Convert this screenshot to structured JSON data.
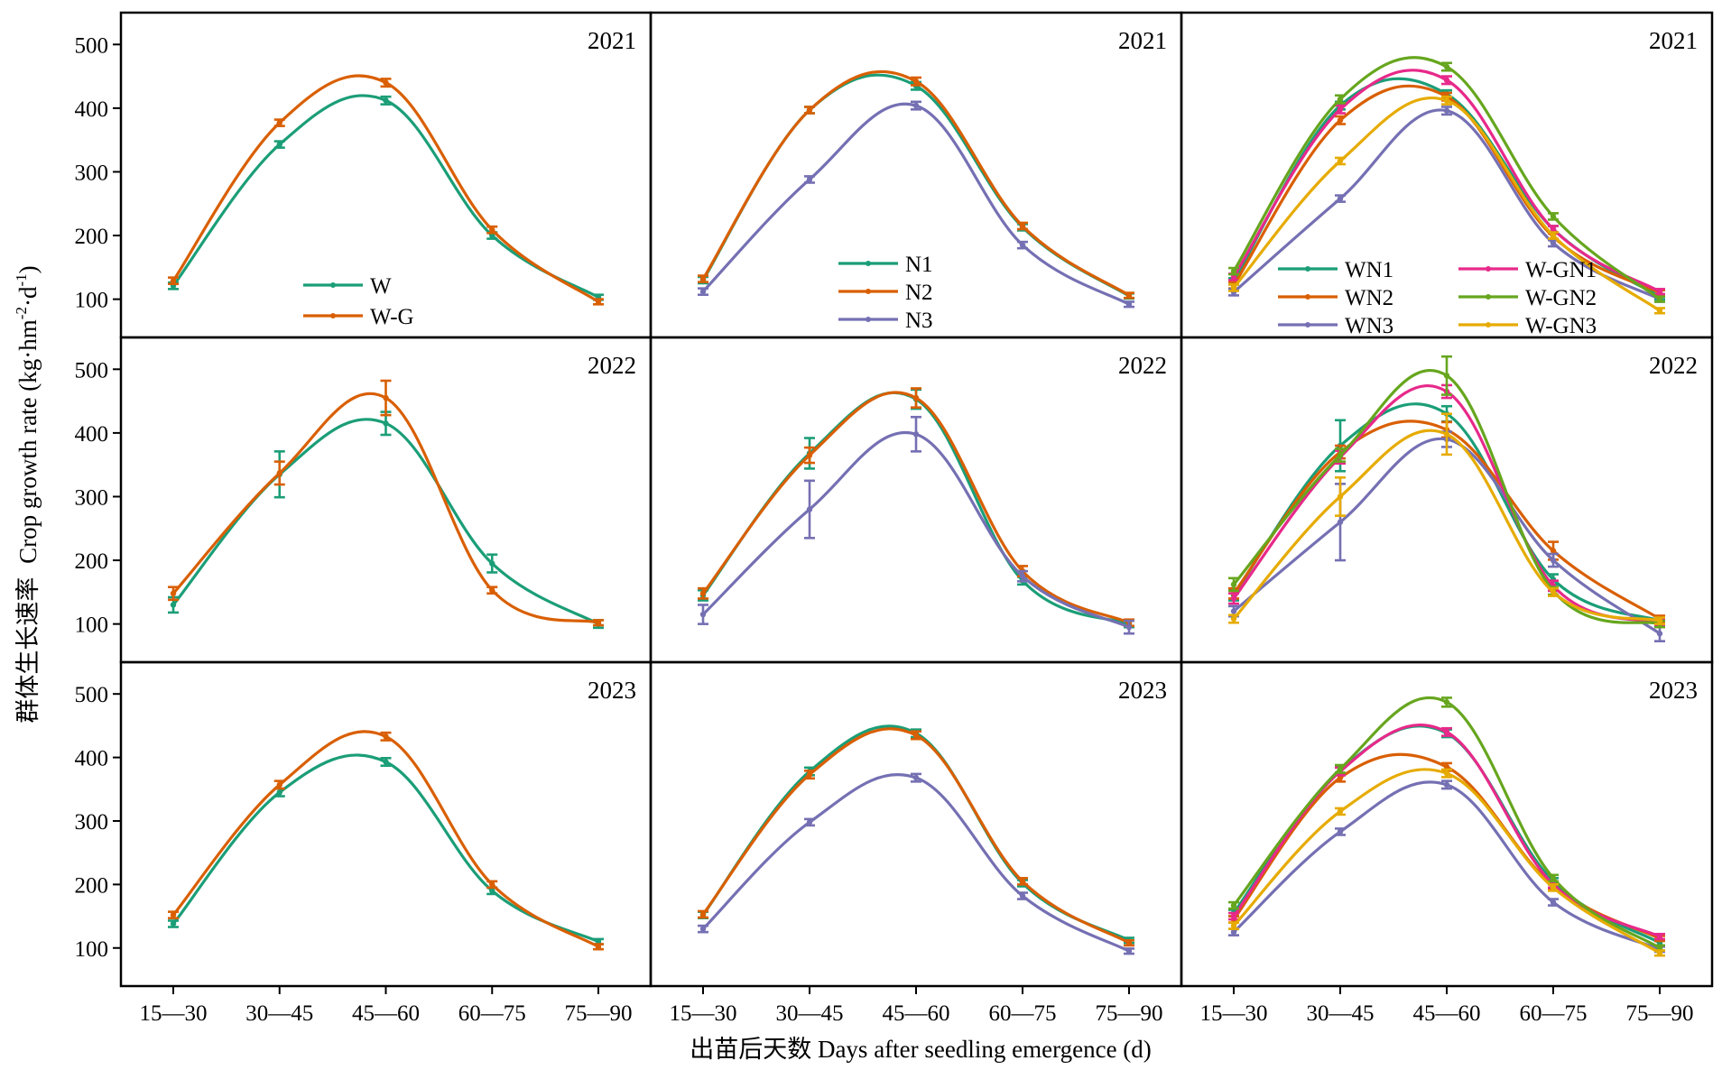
{
  "x_axis": {
    "title": "出苗后天数 Days after seedling emergence (d)",
    "tick_labels": [
      "15—30",
      "30—45",
      "45—60",
      "60—75",
      "75—90"
    ]
  },
  "y_axis": {
    "title_cn": "群体生长速率",
    "title_en": "Crop growth rate (kg·hm",
    "title_sup1": "-2",
    "title_mid": "·d",
    "title_sup2": "-1",
    "title_end": ")",
    "tick_values": [
      100,
      200,
      300,
      400,
      500
    ],
    "ylim": [
      40,
      550
    ]
  },
  "colors": {
    "W": "#1b9e77",
    "W-G": "#d95f02",
    "N1": "#1b9e77",
    "N2": "#d95f02",
    "N3": "#7570b3",
    "WN1": "#1b9e77",
    "WN2": "#d95f02",
    "WN3": "#7570b3",
    "W-GN1": "#e7298a",
    "W-GN2": "#66a61e",
    "W-GN3": "#e6ab02"
  },
  "chart_data": [
    {
      "type": "line",
      "row": 0,
      "col": 0,
      "year": "2021",
      "categories": [
        "15—30",
        "30—45",
        "45—60",
        "60—75",
        "75—90"
      ],
      "series": [
        {
          "name": "W",
          "values": [
            121,
            343,
            412,
            200,
            103
          ],
          "errors": [
            5,
            5,
            6,
            5,
            4
          ]
        },
        {
          "name": "W-G",
          "values": [
            129,
            377,
            440,
            209,
            96
          ],
          "errors": [
            5,
            5,
            6,
            5,
            4
          ]
        }
      ]
    },
    {
      "type": "line",
      "row": 0,
      "col": 1,
      "year": "2021",
      "categories": [
        "15—30",
        "30—45",
        "45—60",
        "60—75",
        "75—90"
      ],
      "series": [
        {
          "name": "N1",
          "values": [
            130,
            397,
            435,
            213,
            105
          ],
          "errors": [
            5,
            5,
            6,
            5,
            4
          ]
        },
        {
          "name": "N2",
          "values": [
            132,
            397,
            442,
            215,
            106
          ],
          "errors": [
            5,
            5,
            6,
            5,
            4
          ]
        },
        {
          "name": "N3",
          "values": [
            112,
            288,
            404,
            185,
            92
          ],
          "errors": [
            5,
            5,
            6,
            5,
            4
          ]
        }
      ]
    },
    {
      "type": "line",
      "row": 0,
      "col": 2,
      "year": "2021",
      "categories": [
        "15—30",
        "30—45",
        "45—60",
        "60—75",
        "75—90"
      ],
      "series": [
        {
          "name": "WN1",
          "values": [
            128,
            404,
            422,
            210,
            104
          ],
          "errors": [
            5,
            6,
            6,
            5,
            4
          ]
        },
        {
          "name": "WN2",
          "values": [
            122,
            381,
            418,
            198,
            110
          ],
          "errors": [
            5,
            6,
            6,
            5,
            4
          ]
        },
        {
          "name": "WN3",
          "values": [
            111,
            258,
            396,
            188,
            100
          ],
          "errors": [
            5,
            5,
            6,
            5,
            4
          ]
        },
        {
          "name": "W-GN1",
          "values": [
            135,
            398,
            444,
            210,
            112
          ],
          "errors": [
            5,
            6,
            6,
            5,
            4
          ]
        },
        {
          "name": "W-GN2",
          "values": [
            144,
            414,
            465,
            230,
            100
          ],
          "errors": [
            5,
            6,
            6,
            5,
            4
          ]
        },
        {
          "name": "W-GN3",
          "values": [
            118,
            317,
            412,
            200,
            82
          ],
          "errors": [
            5,
            5,
            6,
            5,
            4
          ]
        }
      ]
    },
    {
      "type": "line",
      "row": 1,
      "col": 0,
      "year": "2022",
      "categories": [
        "15—30",
        "30—45",
        "45—60",
        "60—75",
        "75—90"
      ],
      "series": [
        {
          "name": "W",
          "values": [
            130,
            335,
            415,
            195,
            100
          ],
          "errors": [
            12,
            36,
            18,
            14,
            6
          ]
        },
        {
          "name": "W-G",
          "values": [
            148,
            337,
            455,
            153,
            102
          ],
          "errors": [
            10,
            18,
            27,
            5,
            4
          ]
        }
      ]
    },
    {
      "type": "line",
      "row": 1,
      "col": 1,
      "year": "2022",
      "categories": [
        "15—30",
        "30—45",
        "45—60",
        "60—75",
        "75—90"
      ],
      "series": [
        {
          "name": "N1",
          "values": [
            145,
            368,
            453,
            168,
            100
          ],
          "errors": [
            8,
            24,
            15,
            6,
            5
          ]
        },
        {
          "name": "N2",
          "values": [
            148,
            365,
            455,
            183,
            102
          ],
          "errors": [
            8,
            12,
            15,
            8,
            5
          ]
        },
        {
          "name": "N3",
          "values": [
            115,
            280,
            398,
            175,
            95
          ],
          "errors": [
            15,
            45,
            27,
            8,
            10
          ]
        }
      ]
    },
    {
      "type": "line",
      "row": 1,
      "col": 2,
      "year": "2022",
      "categories": [
        "15—30",
        "30—45",
        "45—60",
        "60—75",
        "75—90"
      ],
      "series": [
        {
          "name": "WN1",
          "values": [
            145,
            380,
            430,
            170,
            105
          ],
          "errors": [
            8,
            40,
            12,
            8,
            5
          ]
        },
        {
          "name": "WN2",
          "values": [
            148,
            370,
            405,
            215,
            108
          ],
          "errors": [
            8,
            10,
            12,
            14,
            5
          ]
        },
        {
          "name": "WN3",
          "values": [
            120,
            260,
            390,
            200,
            85
          ],
          "errors": [
            8,
            60,
            12,
            10,
            12
          ]
        },
        {
          "name": "W-GN1",
          "values": [
            140,
            362,
            465,
            160,
            102
          ],
          "errors": [
            8,
            10,
            10,
            8,
            5
          ]
        },
        {
          "name": "W-GN2",
          "values": [
            162,
            365,
            490,
            152,
            100
          ],
          "errors": [
            10,
            10,
            30,
            6,
            5
          ]
        },
        {
          "name": "W-GN3",
          "values": [
            108,
            300,
            398,
            150,
            105
          ],
          "errors": [
            6,
            30,
            32,
            6,
            5
          ]
        }
      ]
    },
    {
      "type": "line",
      "row": 2,
      "col": 0,
      "year": "2023",
      "categories": [
        "15—30",
        "30—45",
        "45—60",
        "60—75",
        "75—90"
      ],
      "series": [
        {
          "name": "W",
          "values": [
            138,
            345,
            393,
            190,
            110
          ],
          "errors": [
            5,
            6,
            6,
            5,
            4
          ]
        },
        {
          "name": "W-G",
          "values": [
            152,
            357,
            433,
            200,
            102
          ],
          "errors": [
            5,
            6,
            6,
            5,
            4
          ]
        }
      ]
    },
    {
      "type": "line",
      "row": 2,
      "col": 1,
      "year": "2023",
      "categories": [
        "15—30",
        "30—45",
        "45—60",
        "60—75",
        "75—90"
      ],
      "series": [
        {
          "name": "N1",
          "values": [
            152,
            378,
            438,
            202,
            112
          ],
          "errors": [
            5,
            6,
            6,
            5,
            4
          ]
        },
        {
          "name": "N2",
          "values": [
            153,
            373,
            435,
            205,
            108
          ],
          "errors": [
            5,
            6,
            6,
            5,
            4
          ]
        },
        {
          "name": "N3",
          "values": [
            130,
            298,
            368,
            182,
            95
          ],
          "errors": [
            5,
            5,
            6,
            5,
            4
          ]
        }
      ]
    },
    {
      "type": "line",
      "row": 2,
      "col": 2,
      "year": "2023",
      "categories": [
        "15—30",
        "30—45",
        "45—60",
        "60—75",
        "75—90"
      ],
      "series": [
        {
          "name": "WN1",
          "values": [
            155,
            380,
            438,
            205,
            108
          ],
          "errors": [
            5,
            6,
            6,
            5,
            4
          ]
        },
        {
          "name": "WN2",
          "values": [
            145,
            368,
            385,
            198,
            115
          ],
          "errors": [
            5,
            6,
            6,
            5,
            4
          ]
        },
        {
          "name": "WN3",
          "values": [
            125,
            283,
            357,
            172,
            98
          ],
          "errors": [
            5,
            5,
            6,
            5,
            4
          ]
        },
        {
          "name": "W-GN1",
          "values": [
            150,
            378,
            440,
            200,
            118
          ],
          "errors": [
            5,
            6,
            6,
            5,
            4
          ]
        },
        {
          "name": "W-GN2",
          "values": [
            167,
            382,
            487,
            210,
            100
          ],
          "errors": [
            5,
            6,
            7,
            5,
            4
          ]
        },
        {
          "name": "W-GN3",
          "values": [
            135,
            315,
            375,
            195,
            92
          ],
          "errors": [
            5,
            5,
            6,
            5,
            4
          ]
        }
      ]
    }
  ],
  "legends": {
    "col0": [
      "W",
      "W-G"
    ],
    "col1": [
      "N1",
      "N2",
      "N3"
    ],
    "col2": [
      "WN1",
      "W-GN1",
      "WN2",
      "W-GN2",
      "WN3",
      "W-GN3"
    ]
  }
}
